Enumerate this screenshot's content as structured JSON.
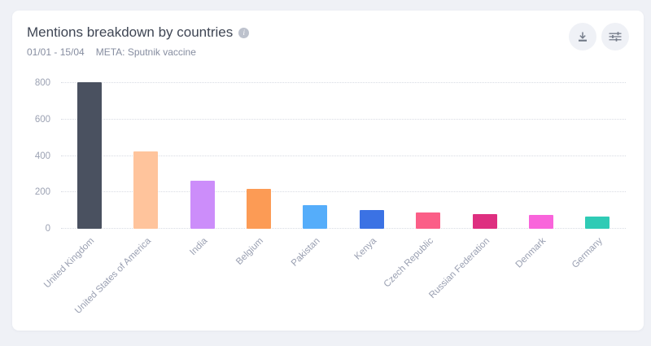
{
  "page": {
    "background": "#EFF1F6"
  },
  "header": {
    "title": "Mentions breakdown by countries",
    "info_icon": "info-circle-icon",
    "date_range": "01/01 - 15/04",
    "meta_filter": "META: Sputnik vaccine",
    "actions": [
      {
        "name": "download-button",
        "icon": "download-icon"
      },
      {
        "name": "chart-settings-button",
        "icon": "sliders-icon"
      }
    ]
  },
  "chart_data": {
    "type": "bar",
    "title": "Mentions breakdown by countries",
    "categories": [
      "United Kingdom",
      "United States of America",
      "India",
      "Belgium",
      "Pakistan",
      "Kenya",
      "Czech Republic",
      "Russian Federation",
      "Denmark",
      "Germany"
    ],
    "values": [
      805,
      425,
      262,
      220,
      130,
      105,
      90,
      82,
      75,
      65
    ],
    "bar_colors": [
      "#4A5160",
      "#FFC49C",
      "#CC8DFA",
      "#FC9B55",
      "#55ADFA",
      "#3B72E4",
      "#FB5E87",
      "#DE2F80",
      "#F964DB",
      "#2FCBB5"
    ],
    "xlabel": "",
    "ylabel": "",
    "ylim": [
      0,
      800
    ],
    "yticks": [
      0,
      200,
      400,
      600,
      800
    ],
    "grid": "horizontal-dotted",
    "legend": "none",
    "colors": {
      "grid": "#D8DBE3",
      "axis_text": "#9CA2B3",
      "title_text": "#3F4654",
      "subtitle_text": "#868DA0"
    }
  }
}
